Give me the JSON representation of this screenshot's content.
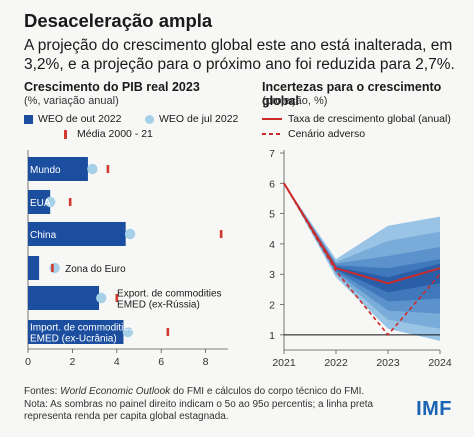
{
  "header": {
    "title": "Desaceleração ampla",
    "subtitle": "A projeção do crescimento global este ano está inalterada, em 3,2%, e a projeção para o próximo ano foi reduzida para 2,7%."
  },
  "colors": {
    "bar": "#1c4ea0",
    "jul_dot": "#a6cfe8",
    "avg_mark": "#d23a30",
    "line": "#cc2b2b",
    "fan": [
      "#2a5fa8",
      "#3f78bb",
      "#5b92cb",
      "#7aacd9",
      "#9ac4e5"
    ]
  },
  "chart_data": [
    {
      "type": "bar",
      "title": "Crescimento do PIB real 2023",
      "subtitle": "(%, variação anual)",
      "orientation": "horizontal",
      "categories": [
        "Mundo",
        "EUA",
        "China",
        "Zona do Euro",
        "Export. de commodities EMED (ex-Rússia)",
        "Import. de commodities EMED (ex-Ucrânia)"
      ],
      "label_position": [
        "inside",
        "inside",
        "inside",
        "outside",
        "outside",
        "inside"
      ],
      "label_lines": [
        [
          "Mundo"
        ],
        [
          "EUA"
        ],
        [
          "China"
        ],
        [
          "Zona do Euro"
        ],
        [
          "Export. de commodities",
          "EMED (ex-Rússia)"
        ],
        [
          "Import. de commodities",
          "EMED (ex-Ucrânia)"
        ]
      ],
      "series": [
        {
          "name": "WEO de out 2022",
          "kind": "bar",
          "values": [
            2.7,
            1.0,
            4.4,
            0.5,
            3.2,
            4.3
          ]
        },
        {
          "name": "WEO de jul 2022",
          "kind": "dot",
          "values": [
            2.9,
            1.0,
            4.6,
            1.2,
            3.3,
            4.5
          ]
        },
        {
          "name": "Média 2000 - 21",
          "kind": "mark",
          "values": [
            3.6,
            1.9,
            8.7,
            1.1,
            4.0,
            6.3
          ]
        }
      ],
      "xticks": [
        0,
        2,
        4,
        6,
        8
      ],
      "xlim": [
        0,
        9
      ]
    },
    {
      "type": "line",
      "title": "Incertezas para o crescimento global",
      "subtitle": "(projeção, %)",
      "x": [
        2021,
        2022,
        2023,
        2024
      ],
      "series": [
        {
          "name": "Taxa de crescimento global (anual)",
          "style": "solid",
          "values": [
            6.0,
            3.2,
            2.7,
            3.2
          ]
        },
        {
          "name": "Cenário adverso",
          "style": "dashed",
          "values": [
            6.0,
            3.1,
            1.0,
            3.0
          ]
        }
      ],
      "fan_bands": [
        {
          "lower": [
            6.0,
            2.9,
            1.2,
            0.8
          ],
          "upper": [
            6.0,
            3.5,
            4.6,
            4.9
          ]
        },
        {
          "lower": [
            6.0,
            3.0,
            1.5,
            1.2
          ],
          "upper": [
            6.0,
            3.4,
            4.1,
            4.4
          ]
        },
        {
          "lower": [
            6.0,
            3.05,
            1.8,
            1.7
          ],
          "upper": [
            6.0,
            3.35,
            3.6,
            3.9
          ]
        },
        {
          "lower": [
            6.0,
            3.1,
            2.1,
            2.2
          ],
          "upper": [
            6.0,
            3.3,
            3.2,
            3.5
          ]
        },
        {
          "lower": [
            6.0,
            3.15,
            2.4,
            2.7
          ],
          "upper": [
            6.0,
            3.25,
            2.9,
            3.35
          ]
        }
      ],
      "reference_line": 1,
      "yticks": [
        1,
        2,
        3,
        4,
        5,
        6,
        7
      ],
      "ylim": [
        0.5,
        7
      ]
    }
  ],
  "footer": {
    "line1_prefix": "Fontes: ",
    "line1_italic": "World Economic Outlook",
    "line1_rest": " do FMI e cálculos do corpo técnico do FMI.",
    "line2": "Nota: As sombras no painel direito indicam o 5o ao 95o percentis; a linha preta representa renda per capita global estagnada."
  },
  "logo": "IMF"
}
